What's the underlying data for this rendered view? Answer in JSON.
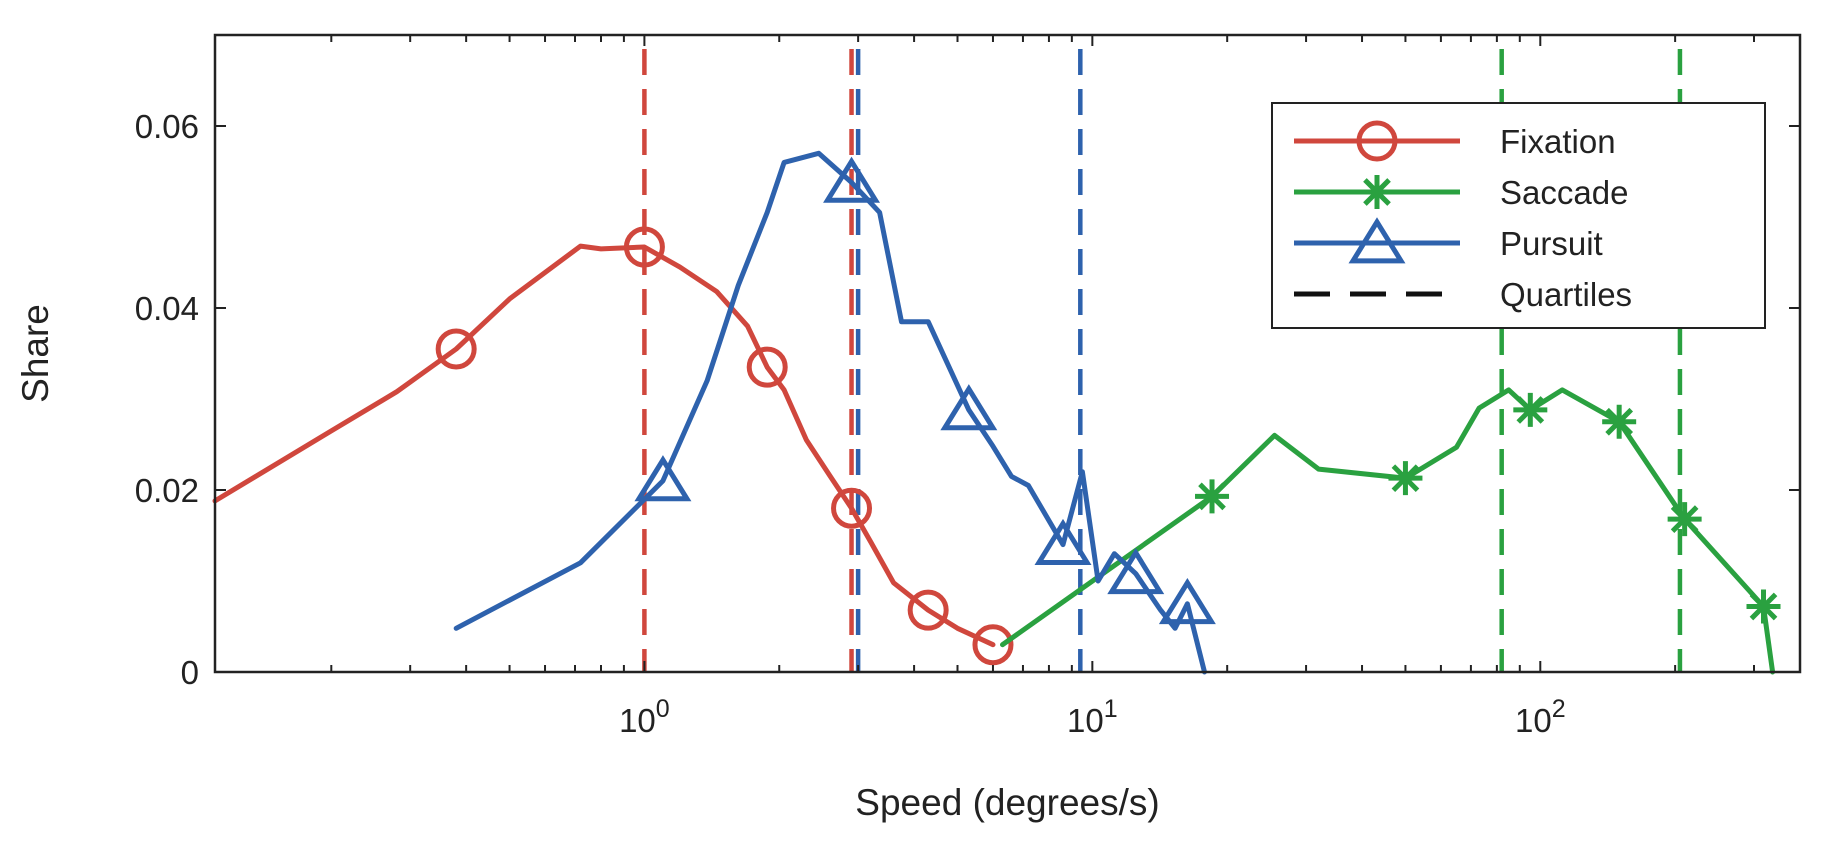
{
  "chart_data": {
    "type": "line",
    "title": "",
    "xlabel": "Speed (degrees/s)",
    "ylabel": "Share",
    "xscale": "log",
    "xlim": [
      0.11,
      380
    ],
    "ylim": [
      0,
      0.07
    ],
    "yticks": [
      0,
      0.02,
      0.04,
      0.06
    ],
    "ytick_labels": [
      "0",
      "0.02",
      "0.04",
      "0.06"
    ],
    "xticks": [
      {
        "value": 1,
        "base": "10",
        "exp": "0"
      },
      {
        "value": 10,
        "base": "10",
        "exp": "1"
      },
      {
        "value": 100,
        "base": "10",
        "exp": "2"
      }
    ],
    "legend_position": "top-right",
    "series": [
      {
        "name": "Fixation",
        "color": "#d0473d",
        "marker": "circle",
        "x": [
          0.11,
          0.2,
          0.28,
          0.38,
          0.5,
          0.72,
          0.8,
          1.0,
          1.2,
          1.45,
          1.7,
          1.88,
          2.05,
          2.3,
          2.6,
          2.9,
          3.2,
          3.6,
          4.3,
          5.0,
          6.0
        ],
        "y": [
          0.0188,
          0.0265,
          0.0308,
          0.0355,
          0.041,
          0.0468,
          0.0465,
          0.0467,
          0.0445,
          0.0418,
          0.038,
          0.0335,
          0.031,
          0.0255,
          0.0215,
          0.018,
          0.0143,
          0.0098,
          0.0068,
          0.0048,
          0.003
        ],
        "marker_x": [
          0.38,
          1.0,
          1.88,
          2.9,
          4.3,
          6.0
        ],
        "marker_y": [
          0.0355,
          0.0467,
          0.0335,
          0.018,
          0.0068,
          0.003
        ]
      },
      {
        "name": "Saccade",
        "color": "#2aa140",
        "marker": "asterisk",
        "x": [
          6.3,
          18.5,
          25.5,
          32,
          50,
          65,
          73,
          85,
          95,
          112,
          150,
          210,
          315,
          330
        ],
        "y": [
          0.003,
          0.0193,
          0.026,
          0.0223,
          0.0213,
          0.0247,
          0.029,
          0.031,
          0.0288,
          0.031,
          0.0275,
          0.0168,
          0.0072,
          0
        ],
        "marker_x": [
          18.5,
          50,
          95,
          150,
          210,
          315
        ],
        "marker_y": [
          0.0193,
          0.0213,
          0.0288,
          0.0275,
          0.0168,
          0.0072
        ]
      },
      {
        "name": "Pursuit",
        "color": "#2e62ad",
        "marker": "triangle",
        "x": [
          0.38,
          0.72,
          1.1,
          1.38,
          1.62,
          1.88,
          2.05,
          2.45,
          2.9,
          3.35,
          3.75,
          4.3,
          5.3,
          6.0,
          6.6,
          7.2,
          8.6,
          9.5,
          10.3,
          11.2,
          12.5,
          14.2,
          15.3,
          16.3,
          17.8
        ],
        "y": [
          0.0048,
          0.012,
          0.021,
          0.032,
          0.0425,
          0.0505,
          0.056,
          0.057,
          0.0538,
          0.0505,
          0.0385,
          0.0385,
          0.0288,
          0.0248,
          0.0215,
          0.0205,
          0.014,
          0.022,
          0.01,
          0.013,
          0.0108,
          0.0068,
          0.0048,
          0.0075,
          0
        ],
        "marker_x": [
          1.1,
          2.9,
          5.3,
          8.6,
          12.5,
          16.3
        ],
        "marker_y": [
          0.021,
          0.0538,
          0.0288,
          0.014,
          0.0108,
          0.0075
        ]
      }
    ],
    "quartiles": [
      {
        "series": "Fixation",
        "color": "#d0473d",
        "values": [
          1.0,
          2.9
        ]
      },
      {
        "series": "Pursuit",
        "color": "#2e62ad",
        "values": [
          3.0,
          9.4
        ]
      },
      {
        "series": "Saccade",
        "color": "#2aa140",
        "values": [
          82,
          205
        ]
      }
    ],
    "legend": [
      {
        "label": "Fixation",
        "color": "#d0473d",
        "marker": "circle",
        "dashed": false
      },
      {
        "label": "Saccade",
        "color": "#2aa140",
        "marker": "asterisk",
        "dashed": false
      },
      {
        "label": "Pursuit",
        "color": "#2e62ad",
        "marker": "triangle",
        "dashed": false
      },
      {
        "label": "Quartiles",
        "color": "#111111",
        "marker": "none",
        "dashed": true
      }
    ]
  }
}
